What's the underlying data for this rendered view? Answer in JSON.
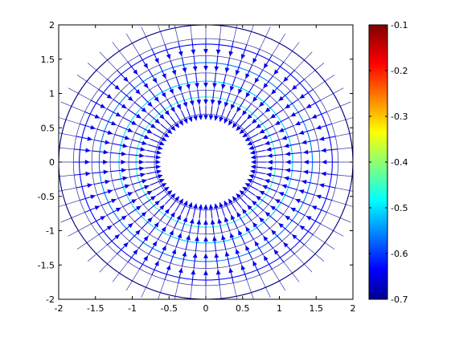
{
  "chart_data": {
    "type": "vector-field",
    "title": "",
    "xlabel": "",
    "ylabel": "",
    "xlim": [
      -2,
      2
    ],
    "ylim": [
      -2,
      2
    ],
    "x_ticks": [
      -2,
      -1.5,
      -1,
      -0.5,
      0,
      0.5,
      1,
      1.5,
      2
    ],
    "y_ticks": [
      -2,
      -1.5,
      -1,
      -0.5,
      0,
      0.5,
      1,
      1.5,
      2
    ],
    "x_tick_labels": [
      "-2",
      "-1.5",
      "-1",
      "-0.5",
      "0",
      "0.5",
      "1",
      "1.5",
      "2"
    ],
    "y_tick_labels": [
      "-2",
      "-1.5",
      "-1",
      "-0.5",
      "0",
      "0.5",
      "1",
      "1.5",
      "2"
    ],
    "grid": false,
    "domain": {
      "shape": "annulus",
      "inner_radius": 0.7,
      "outer_radius": 2.0
    },
    "contours": {
      "radii": [
        0.95,
        1.18,
        1.45,
        1.72,
        2.0
      ],
      "levels": [
        -0.45,
        -0.5,
        -0.55,
        -0.62,
        -0.7
      ]
    },
    "arrows": {
      "angular_count": 60,
      "radii": [
        0.82,
        1.05,
        1.3,
        1.55,
        1.8
      ],
      "direction": "inward radial",
      "color": "#0000ee"
    },
    "colorbar": {
      "min": -0.7,
      "max": -0.1,
      "ticks": [
        -0.1,
        -0.2,
        -0.3,
        -0.4,
        -0.5,
        -0.6,
        -0.7
      ],
      "tick_labels": [
        "-0.1",
        "-0.2",
        "-0.3",
        "-0.4",
        "-0.5",
        "-0.6",
        "-0.7"
      ],
      "colormap": "jet",
      "placement": "right"
    }
  }
}
